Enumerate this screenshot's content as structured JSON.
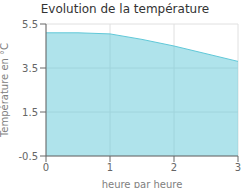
{
  "chart_data": {
    "type": "area",
    "title": "Evolution de la température",
    "xlabel": "heure par heure",
    "ylabel": "Température en °C",
    "x": [
      0,
      0.5,
      1.0,
      1.5,
      2.0,
      2.5,
      3.0
    ],
    "values": [
      5.1,
      5.1,
      5.05,
      4.8,
      4.5,
      4.15,
      3.8
    ],
    "color": "#60c8d8",
    "xlim": [
      0,
      3
    ],
    "ylim": [
      -0.5,
      5.5
    ],
    "xticks": [
      0,
      1,
      2,
      3
    ],
    "yticks": [
      -0.5,
      1.5,
      3.5,
      5.5
    ],
    "grid": true
  }
}
